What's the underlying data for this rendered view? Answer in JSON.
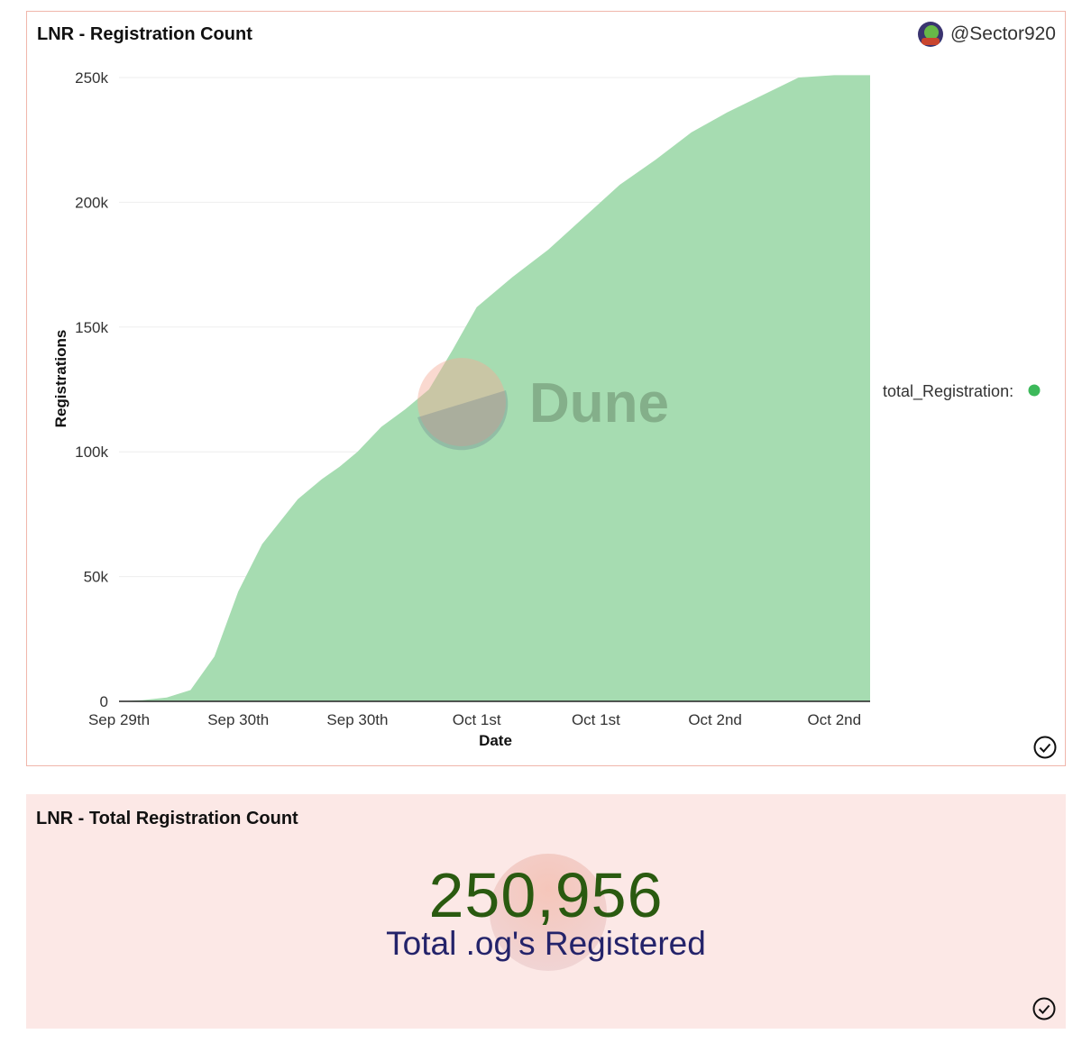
{
  "panel1": {
    "title": "LNR - Registration Count",
    "author": "@Sector920",
    "watermark": "Dune"
  },
  "panel2": {
    "title": "LNR - Total Registration Count",
    "value": "250,956",
    "subtitle": "Total .og's Registered"
  },
  "colors": {
    "area_fill": "#a6dcb1",
    "legend_dot": "#3cb95a",
    "big_number": "#2a5a10",
    "subtitle": "#24236a",
    "panel_border": "#f0b6ab",
    "panel2_bg": "#fce8e6"
  },
  "chart_data": {
    "type": "area",
    "title": "LNR - Registration Count",
    "xlabel": "Date",
    "ylabel": "Registrations",
    "x_ticks": [
      "Sep 29th",
      "Sep 30th",
      "Sep 30th",
      "Oct 1st",
      "Oct 1st",
      "Oct 2nd",
      "Oct 2nd"
    ],
    "y_ticks": [
      "0",
      "50k",
      "100k",
      "150k",
      "200k",
      "250k"
    ],
    "ylim": [
      0,
      250000
    ],
    "grid": true,
    "legend_position": "right",
    "series": [
      {
        "name": "total_Registration:",
        "color": "#a6dcb1",
        "x_index": [
          0,
          0.2,
          0.4,
          0.6,
          0.8,
          1.0,
          1.2,
          1.5,
          1.7,
          1.85,
          2.0,
          2.2,
          2.4,
          2.6,
          2.8,
          3.0,
          3.3,
          3.6,
          3.9,
          4.2,
          4.5,
          4.8,
          5.1,
          5.4,
          5.7,
          6.0,
          6.3
        ],
        "values": [
          0,
          500,
          1500,
          4500,
          18000,
          44000,
          63000,
          81000,
          89000,
          94000,
          100000,
          110000,
          117000,
          125000,
          141000,
          158000,
          170000,
          181000,
          194000,
          207000,
          217000,
          228000,
          236000,
          243000,
          250000,
          250956,
          250956
        ]
      }
    ]
  }
}
